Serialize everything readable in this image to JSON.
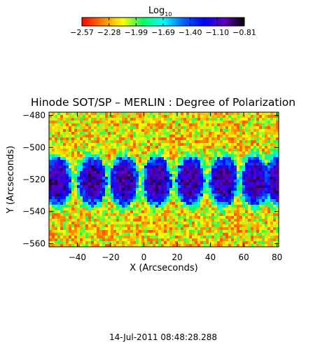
{
  "colorbar": {
    "label_main": "Log",
    "label_sub": "10",
    "ticks": [
      "−2.57",
      "−2.28",
      "−1.99",
      "−1.69",
      "−1.40",
      "−1.10",
      "−0.81"
    ],
    "range": [
      -2.57,
      -0.81
    ],
    "colormap": [
      "#ff0000",
      "#ff8000",
      "#ffff00",
      "#00ff60",
      "#00ffff",
      "#0060ff",
      "#0000ff",
      "#6000c0",
      "#000000"
    ]
  },
  "chart_data": {
    "type": "heatmap",
    "title": "Hinode SOT/SP – MERLIN : Degree of Polarization",
    "xlabel": "X (Arcseconds)",
    "ylabel": "Y (Arcseconds)",
    "xlim": [
      -57,
      81
    ],
    "ylim": [
      -562,
      -478
    ],
    "x_ticks": [
      "−40",
      "−20",
      "0",
      "20",
      "40",
      "60",
      "80"
    ],
    "y_ticks": [
      "−480",
      "−500",
      "−520",
      "−540",
      "−560"
    ],
    "x_tick_values": [
      -40,
      -20,
      0,
      20,
      40,
      60,
      80
    ],
    "y_tick_values": [
      -480,
      -500,
      -520,
      -540,
      -560
    ],
    "colorbar_label": "Log10",
    "value_range": [
      -2.57,
      -0.81
    ],
    "repeated_panels": {
      "spot_centers_x": [
        -52,
        -31,
        -12,
        8,
        28,
        48,
        67,
        81
      ],
      "spot_center_y": -521
    }
  },
  "footer": {
    "timestamp": "14-Jul-2011 08:48:28.288"
  }
}
